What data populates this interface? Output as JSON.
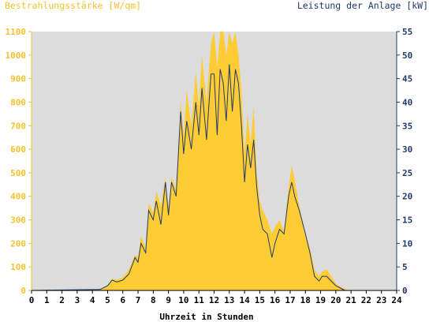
{
  "chart_data": {
    "type": "area",
    "left_axis_title": "Bestrahlungsstärke [W/qm]",
    "right_axis_title": "Leistung der Anlage [kW]",
    "xlabel": "Uhrzeit in Stunden",
    "xlim": [
      0,
      24
    ],
    "ylim_left": [
      0,
      1100
    ],
    "ylim_right": [
      0,
      55
    ],
    "x_ticks": [
      "0",
      "1",
      "2",
      "3",
      "4",
      "5",
      "6",
      "7",
      "8",
      "9",
      "10",
      "11",
      "12",
      "13",
      "14",
      "15",
      "16",
      "17",
      "18",
      "19",
      "20",
      "21",
      "22",
      "23",
      "24"
    ],
    "y_ticks_left": [
      "0",
      "100",
      "200",
      "300",
      "400",
      "500",
      "600",
      "700",
      "800",
      "900",
      "1000",
      "1100"
    ],
    "y_ticks_right": [
      "0",
      "5",
      "10",
      "15",
      "20",
      "25",
      "30",
      "35",
      "40",
      "45",
      "50",
      "55"
    ],
    "grid": false,
    "colors": {
      "plot_background": "#dcdcdc",
      "irradiance_fill": "#ffcc33",
      "power_line": "#1f3a6e",
      "left_axis": "#f2c230",
      "right_axis": "#1f3a6e"
    },
    "series": [
      {
        "name": "Bestrahlungsstärke [W/qm]",
        "axis": "left",
        "x": [
          0,
          4.5,
          5,
          5.3,
          5.6,
          6,
          6.4,
          6.8,
          7,
          7.2,
          7.5,
          7.7,
          8,
          8.2,
          8.5,
          8.8,
          9,
          9.2,
          9.5,
          9.8,
          10,
          10.2,
          10.5,
          10.8,
          11,
          11.2,
          11.5,
          11.8,
          12,
          12.2,
          12.4,
          12.6,
          12.8,
          13,
          13.2,
          13.4,
          13.6,
          13.8,
          14,
          14.2,
          14.4,
          14.6,
          14.8,
          15,
          15.2,
          15.5,
          15.8,
          16,
          16.3,
          16.6,
          16.9,
          17.1,
          17.3,
          17.6,
          18,
          18.3,
          18.6,
          18.9,
          19.1,
          19.4,
          19.7,
          20,
          20.3,
          20.6,
          21,
          24
        ],
        "y": [
          0,
          5,
          20,
          50,
          45,
          55,
          90,
          150,
          140,
          230,
          180,
          370,
          330,
          420,
          360,
          480,
          350,
          480,
          430,
          800,
          660,
          850,
          700,
          930,
          780,
          1000,
          800,
          1050,
          1100,
          950,
          1100,
          1100,
          1000,
          1100,
          1050,
          1100,
          1000,
          850,
          580,
          750,
          620,
          780,
          500,
          380,
          340,
          300,
          240,
          270,
          300,
          250,
          440,
          530,
          470,
          360,
          240,
          180,
          90,
          60,
          80,
          90,
          60,
          30,
          15,
          5,
          0,
          0
        ]
      },
      {
        "name": "Leistung der Anlage [kW]",
        "axis": "right",
        "x": [
          0,
          4.5,
          5,
          5.3,
          5.6,
          6,
          6.4,
          6.8,
          7,
          7.2,
          7.5,
          7.7,
          8,
          8.2,
          8.5,
          8.8,
          9,
          9.2,
          9.5,
          9.8,
          10,
          10.2,
          10.5,
          10.8,
          11,
          11.2,
          11.5,
          11.8,
          12,
          12.2,
          12.4,
          12.6,
          12.8,
          13,
          13.2,
          13.4,
          13.6,
          13.8,
          14,
          14.2,
          14.4,
          14.6,
          14.8,
          15,
          15.2,
          15.5,
          15.8,
          16,
          16.3,
          16.6,
          16.9,
          17.1,
          17.3,
          17.6,
          18,
          18.3,
          18.6,
          18.9,
          19.1,
          19.4,
          19.7,
          20,
          20.3,
          20.6,
          21,
          24
        ],
        "y": [
          0,
          0.2,
          1,
          2.2,
          1.8,
          2.2,
          3.5,
          7,
          6,
          10,
          8,
          17,
          15,
          19,
          14,
          23,
          16,
          23,
          20,
          38,
          29,
          36,
          30,
          40,
          33,
          43,
          32,
          46,
          46,
          33,
          47,
          44,
          36,
          48,
          38,
          47,
          44,
          35,
          23,
          31,
          26,
          32,
          22,
          16,
          13,
          12,
          7,
          10,
          13,
          12,
          20,
          23,
          20,
          17,
          12,
          8,
          3,
          2,
          3,
          3,
          2,
          1,
          0.5,
          0,
          0,
          0
        ]
      }
    ]
  }
}
